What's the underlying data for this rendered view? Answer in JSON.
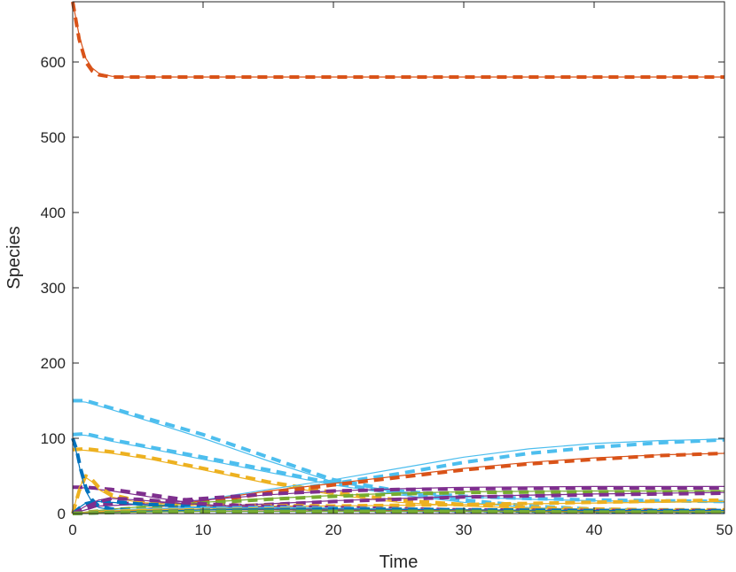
{
  "chart_data": {
    "type": "line",
    "title": "",
    "xlabel": "Time",
    "ylabel": "Species",
    "xlim": [
      0,
      50
    ],
    "ylim": [
      0,
      680
    ],
    "xticks": [
      0,
      10,
      20,
      30,
      40,
      50
    ],
    "yticks": [
      0,
      100,
      200,
      300,
      400,
      500,
      600
    ],
    "grid": false,
    "legend": "none",
    "line_styles": [
      "solid",
      "dashed"
    ],
    "series": [
      {
        "color": "#D95319",
        "x": [
          0,
          0.5,
          1,
          1.5,
          2,
          3,
          4,
          6,
          10,
          20,
          30,
          40,
          50
        ],
        "solid": [
          680,
          635,
          605,
          592,
          585,
          581,
          580,
          580,
          580,
          580,
          580,
          580,
          580
        ],
        "dashed": [
          680,
          630,
          600,
          588,
          583,
          580,
          580,
          580,
          580,
          580,
          580,
          580,
          580
        ]
      },
      {
        "color": "#4DBEEE",
        "x": [
          0,
          1,
          3,
          6,
          10,
          15,
          20,
          25,
          30,
          35,
          40,
          45,
          50
        ],
        "solid": [
          150,
          148,
          138,
          122,
          100,
          70,
          42,
          28,
          22,
          19,
          17,
          16,
          15
        ],
        "dashed": [
          150,
          150,
          140,
          125,
          105,
          75,
          45,
          30,
          23,
          20,
          18,
          17,
          16
        ]
      },
      {
        "color": "#4DBEEE",
        "x": [
          0,
          1,
          3,
          6,
          10,
          15,
          20,
          25,
          30,
          35,
          40,
          45,
          50
        ],
        "solid": [
          105,
          104,
          96,
          86,
          72,
          55,
          38,
          25,
          15,
          8,
          5,
          4,
          3
        ],
        "dashed": [
          105,
          106,
          98,
          88,
          75,
          58,
          40,
          28,
          18,
          10,
          6,
          4,
          3
        ]
      },
      {
        "color": "#EDB120",
        "x": [
          0,
          1,
          3,
          6,
          10,
          15,
          20,
          25,
          30,
          35,
          40,
          45,
          50
        ],
        "solid": [
          85,
          84,
          80,
          72,
          58,
          40,
          25,
          15,
          10,
          7,
          6,
          5,
          5
        ],
        "dashed": [
          85,
          86,
          82,
          74,
          60,
          42,
          28,
          18,
          12,
          8,
          6,
          5,
          5
        ]
      },
      {
        "color": "#4DBEEE",
        "x": [
          0,
          5,
          10,
          15,
          20,
          25,
          30,
          35,
          40,
          45,
          50
        ],
        "solid": [
          0,
          5,
          18,
          32,
          45,
          60,
          75,
          86,
          93,
          97,
          99
        ],
        "dashed": [
          0,
          4,
          15,
          28,
          40,
          53,
          68,
          80,
          88,
          94,
          98
        ]
      },
      {
        "color": "#D95319",
        "x": [
          0,
          5,
          10,
          15,
          20,
          25,
          30,
          35,
          40,
          45,
          50
        ],
        "solid": [
          0,
          5,
          17,
          30,
          40,
          50,
          60,
          68,
          74,
          78,
          80
        ],
        "dashed": [
          0,
          4,
          15,
          27,
          38,
          48,
          58,
          66,
          72,
          77,
          80
        ]
      },
      {
        "color": "#7E2F8E",
        "x": [
          0,
          1,
          3,
          6,
          10,
          15,
          20,
          25,
          30,
          40,
          50
        ],
        "solid": [
          35,
          34,
          30,
          22,
          12,
          6,
          4,
          3,
          3,
          2,
          2
        ],
        "dashed": [
          35,
          35,
          32,
          25,
          15,
          8,
          5,
          3,
          3,
          2,
          2
        ]
      },
      {
        "color": "#7E2F8E",
        "x": [
          0,
          2,
          5,
          10,
          15,
          20,
          25,
          30,
          40,
          50
        ],
        "solid": [
          0,
          10,
          12,
          18,
          25,
          30,
          33,
          35,
          36,
          36
        ],
        "dashed": [
          0,
          12,
          14,
          20,
          26,
          30,
          32,
          33,
          34,
          34
        ]
      },
      {
        "color": "#77AC30",
        "x": [
          0,
          3,
          6,
          10,
          15,
          20,
          25,
          30,
          40,
          50
        ],
        "solid": [
          0,
          6,
          10,
          15,
          20,
          24,
          27,
          29,
          30,
          30
        ],
        "dashed": [
          0,
          5,
          9,
          14,
          19,
          23,
          26,
          28,
          29,
          29
        ]
      },
      {
        "color": "#7E2F8E",
        "x": [
          0,
          3,
          6,
          10,
          15,
          20,
          25,
          30,
          40,
          50
        ],
        "solid": [
          0,
          3,
          5,
          9,
          13,
          17,
          20,
          23,
          26,
          28
        ],
        "dashed": [
          0,
          2,
          4,
          8,
          12,
          16,
          19,
          22,
          25,
          27
        ]
      },
      {
        "color": "#EDB120",
        "x": [
          0,
          0.5,
          1,
          1.5,
          2,
          3,
          5,
          8,
          12,
          20,
          30,
          40,
          50
        ],
        "solid": [
          0,
          35,
          48,
          42,
          32,
          22,
          15,
          12,
          10,
          10,
          12,
          14,
          16
        ],
        "dashed": [
          0,
          30,
          50,
          45,
          35,
          25,
          17,
          13,
          11,
          10,
          12,
          15,
          18
        ]
      },
      {
        "color": "#0072BD",
        "x": [
          0,
          0.3,
          0.6,
          1,
          1.5,
          2,
          3,
          5,
          10,
          20,
          30,
          40,
          50
        ],
        "solid": [
          100,
          80,
          55,
          30,
          15,
          8,
          5,
          4,
          3,
          3,
          3,
          3,
          3
        ],
        "dashed": [
          100,
          85,
          60,
          35,
          18,
          10,
          6,
          4,
          3,
          3,
          3,
          3,
          3
        ]
      },
      {
        "color": "#0072BD",
        "x": [
          0,
          0.5,
          1,
          2,
          3,
          5,
          10,
          15,
          20,
          30,
          40,
          50
        ],
        "solid": [
          0,
          8,
          14,
          16,
          15,
          12,
          8,
          6,
          5,
          4,
          3,
          3
        ],
        "dashed": [
          0,
          7,
          13,
          17,
          16,
          13,
          9,
          7,
          5,
          4,
          3,
          3
        ]
      },
      {
        "color": "#7E2F8E",
        "x": [
          0,
          1,
          2,
          3,
          5,
          8,
          12,
          20,
          30,
          40,
          50
        ],
        "solid": [
          0,
          10,
          18,
          20,
          18,
          14,
          10,
          7,
          5,
          4,
          4
        ],
        "dashed": [
          0,
          8,
          16,
          20,
          19,
          15,
          11,
          8,
          5,
          4,
          4
        ]
      },
      {
        "color": "#4DBEEE",
        "x": [
          0,
          2,
          5,
          10,
          15,
          20,
          30,
          40,
          50
        ],
        "solid": [
          0,
          3,
          6,
          8,
          8,
          7,
          5,
          4,
          3
        ],
        "dashed": [
          0,
          2,
          5,
          7,
          8,
          7,
          5,
          4,
          3
        ]
      },
      {
        "color": "#D95319",
        "x": [
          0,
          2,
          5,
          10,
          15,
          20,
          30,
          40,
          50
        ],
        "solid": [
          0,
          2,
          4,
          5,
          5,
          5,
          4,
          3,
          3
        ],
        "dashed": [
          0,
          2,
          3,
          4,
          5,
          5,
          4,
          3,
          3
        ]
      },
      {
        "color": "#EDB120",
        "x": [
          0,
          2,
          5,
          10,
          15,
          20,
          30,
          40,
          50
        ],
        "solid": [
          0,
          3,
          5,
          6,
          6,
          6,
          5,
          4,
          3
        ],
        "dashed": [
          0,
          2,
          4,
          5,
          6,
          6,
          5,
          4,
          3
        ]
      },
      {
        "color": "#0072BD",
        "x": [
          0,
          2,
          5,
          10,
          15,
          20,
          30,
          40,
          50
        ],
        "solid": [
          0,
          1,
          3,
          5,
          6,
          6,
          5,
          4,
          4
        ],
        "dashed": [
          0,
          1,
          2,
          4,
          5,
          6,
          5,
          4,
          4
        ]
      },
      {
        "color": "#77AC30",
        "x": [
          0,
          2,
          5,
          10,
          15,
          20,
          30,
          40,
          50
        ],
        "solid": [
          0,
          1,
          2,
          3,
          3,
          3,
          3,
          2,
          2
        ],
        "dashed": [
          0,
          1,
          2,
          3,
          3,
          3,
          3,
          2,
          2
        ]
      }
    ]
  }
}
